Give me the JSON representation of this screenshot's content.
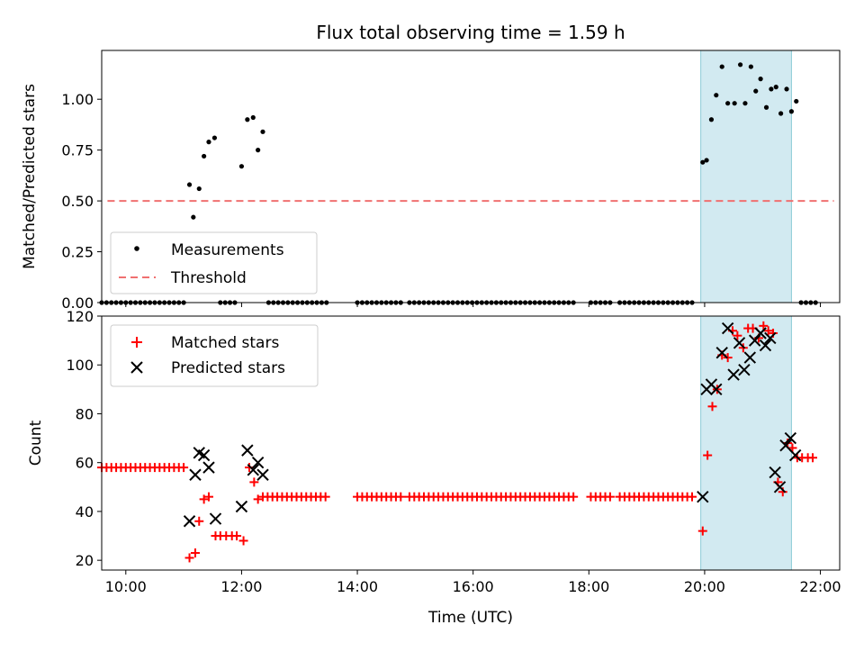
{
  "chart_data": [
    {
      "type": "scatter",
      "title": "Flux total observing time = 1.59 h",
      "xlabel": "",
      "ylabel": "Matched/Predicted stars",
      "xlim": [
        "09:35",
        "22:20"
      ],
      "ylim": [
        0,
        1.24
      ],
      "yticks": [
        "0.00",
        "0.25",
        "0.50",
        "0.75",
        "1.00"
      ],
      "yticks_values": [
        0,
        0.25,
        0.5,
        0.75,
        1.0
      ],
      "shaded_region": {
        "start": "19:56",
        "end": "21:30",
        "color": "#add8e6"
      },
      "legend_position": "lower-left",
      "series": [
        {
          "name": "Measurements",
          "marker": "dot",
          "color": "#000000",
          "points": [
            [
              "11:06",
              0.58
            ],
            [
              "11:10",
              0.42
            ],
            [
              "11:16",
              0.56
            ],
            [
              "11:21",
              0.72
            ],
            [
              "11:26",
              0.79
            ],
            [
              "11:32",
              0.81
            ],
            [
              "12:00",
              0.67
            ],
            [
              "12:06",
              0.9
            ],
            [
              "12:12",
              0.91
            ],
            [
              "12:17",
              0.75
            ],
            [
              "12:22",
              0.84
            ],
            [
              "19:58",
              0.69
            ],
            [
              "20:02",
              0.7
            ],
            [
              "20:07",
              0.9
            ],
            [
              "20:12",
              1.02
            ],
            [
              "20:18",
              1.16
            ],
            [
              "20:24",
              0.98
            ],
            [
              "20:31",
              0.98
            ],
            [
              "20:37",
              1.17
            ],
            [
              "20:42",
              0.98
            ],
            [
              "20:48",
              1.16
            ],
            [
              "20:53",
              1.04
            ],
            [
              "20:58",
              1.1
            ],
            [
              "21:04",
              0.96
            ],
            [
              "21:09",
              1.05
            ],
            [
              "21:14",
              1.06
            ],
            [
              "21:19",
              0.93
            ],
            [
              "21:25",
              1.05
            ],
            [
              "21:30",
              0.94
            ],
            [
              "21:35",
              0.99
            ]
          ]
        },
        {
          "name": "Threshold",
          "marker": "dashed-line",
          "color": "#f07070",
          "points": [
            [
              "09:41",
              0.5
            ],
            [
              "22:14",
              0.5
            ]
          ]
        }
      ]
    },
    {
      "type": "scatter",
      "title": "",
      "xlabel": "Time (UTC)",
      "ylabel": "Count",
      "xlim": [
        "09:35",
        "22:20"
      ],
      "ylim": [
        16,
        120
      ],
      "yticks": [
        "20",
        "40",
        "60",
        "80",
        "100",
        "120"
      ],
      "yticks_values": [
        20,
        40,
        60,
        80,
        100,
        120
      ],
      "xticks": [
        "10:00",
        "12:00",
        "14:00",
        "16:00",
        "18:00",
        "20:00",
        "22:00"
      ],
      "shaded_region": {
        "start": "19:56",
        "end": "21:30",
        "color": "#add8e6"
      },
      "legend_position": "upper-left",
      "series": [
        {
          "name": "Matched stars",
          "marker": "plus",
          "color": "#ff0000",
          "points": [
            [
              "11:06",
              21
            ],
            [
              "11:12",
              23
            ],
            [
              "11:16",
              36
            ],
            [
              "11:21",
              45
            ],
            [
              "11:26",
              46
            ],
            [
              "11:33",
              30
            ],
            [
              "11:38",
              30
            ],
            [
              "11:44",
              30
            ],
            [
              "11:50",
              30
            ],
            [
              "11:55",
              30
            ],
            [
              "12:02",
              28
            ],
            [
              "12:08",
              58
            ],
            [
              "12:13",
              52
            ],
            [
              "12:17",
              45
            ],
            [
              "19:58",
              32
            ],
            [
              "20:03",
              63
            ],
            [
              "20:08",
              83
            ],
            [
              "20:13",
              90
            ],
            [
              "20:18",
              104
            ],
            [
              "20:24",
              103
            ],
            [
              "20:29",
              114
            ],
            [
              "20:34",
              112
            ],
            [
              "20:40",
              107
            ],
            [
              "20:45",
              115
            ],
            [
              "20:50",
              115
            ],
            [
              "20:56",
              111
            ],
            [
              "21:01",
              116
            ],
            [
              "21:06",
              114
            ],
            [
              "21:11",
              113
            ],
            [
              "21:16",
              52
            ],
            [
              "21:21",
              48
            ],
            [
              "21:26",
              68
            ],
            [
              "21:31",
              66
            ],
            [
              "21:36",
              62
            ],
            [
              "21:41",
              62
            ],
            [
              "21:47",
              62
            ],
            [
              "21:52",
              62
            ]
          ]
        },
        {
          "name": "Predicted stars",
          "marker": "x",
          "color": "#000000",
          "points": [
            [
              "11:06",
              36
            ],
            [
              "11:12",
              55
            ],
            [
              "11:16",
              64
            ],
            [
              "11:21",
              63
            ],
            [
              "11:26",
              58
            ],
            [
              "11:33",
              37
            ],
            [
              "12:00",
              42
            ],
            [
              "12:06",
              65
            ],
            [
              "12:12",
              57
            ],
            [
              "12:17",
              60
            ],
            [
              "12:22",
              55
            ],
            [
              "19:58",
              46
            ],
            [
              "20:02",
              90
            ],
            [
              "20:07",
              92
            ],
            [
              "20:12",
              90
            ],
            [
              "20:18",
              105
            ],
            [
              "20:24",
              115
            ],
            [
              "20:30",
              96
            ],
            [
              "20:36",
              109
            ],
            [
              "20:41",
              98
            ],
            [
              "20:47",
              103
            ],
            [
              "20:52",
              110
            ],
            [
              "20:58",
              113
            ],
            [
              "21:03",
              108
            ],
            [
              "21:08",
              111
            ],
            [
              "21:13",
              56
            ],
            [
              "21:18",
              50
            ],
            [
              "21:24",
              67
            ],
            [
              "21:29",
              70
            ],
            [
              "21:34",
              63
            ]
          ]
        }
      ],
      "constant_runs": [
        {
          "series": "Matched stars",
          "value": 58,
          "start": "09:35",
          "end": "11:00",
          "step_minutes": 5
        },
        {
          "series": "Matched stars",
          "value": 46,
          "start": "12:22",
          "end": "13:30",
          "step_minutes": 5
        },
        {
          "series": "Matched stars",
          "value": 46,
          "start": "14:00",
          "end": "14:48",
          "step_minutes": 5
        },
        {
          "series": "Matched stars",
          "value": 46,
          "start": "14:54",
          "end": "17:46",
          "step_minutes": 5
        },
        {
          "series": "Matched stars",
          "value": 46,
          "start": "18:02",
          "end": "18:22",
          "step_minutes": 5
        },
        {
          "series": "Matched stars",
          "value": 46,
          "start": "18:32",
          "end": "19:50",
          "step_minutes": 5
        }
      ]
    }
  ],
  "zero_measurement_runs": [
    {
      "start": "09:35",
      "end": "11:00"
    },
    {
      "start": "11:38",
      "end": "11:55"
    },
    {
      "start": "12:28",
      "end": "13:30"
    },
    {
      "start": "14:00",
      "end": "14:48"
    },
    {
      "start": "14:54",
      "end": "17:46"
    },
    {
      "start": "18:02",
      "end": "18:22"
    },
    {
      "start": "18:32",
      "end": "19:50"
    },
    {
      "start": "21:40",
      "end": "21:55"
    }
  ],
  "legend_top": {
    "measurements": "Measurements",
    "threshold": "Threshold"
  },
  "legend_bottom": {
    "matched": "Matched stars",
    "predicted": "Predicted stars"
  }
}
